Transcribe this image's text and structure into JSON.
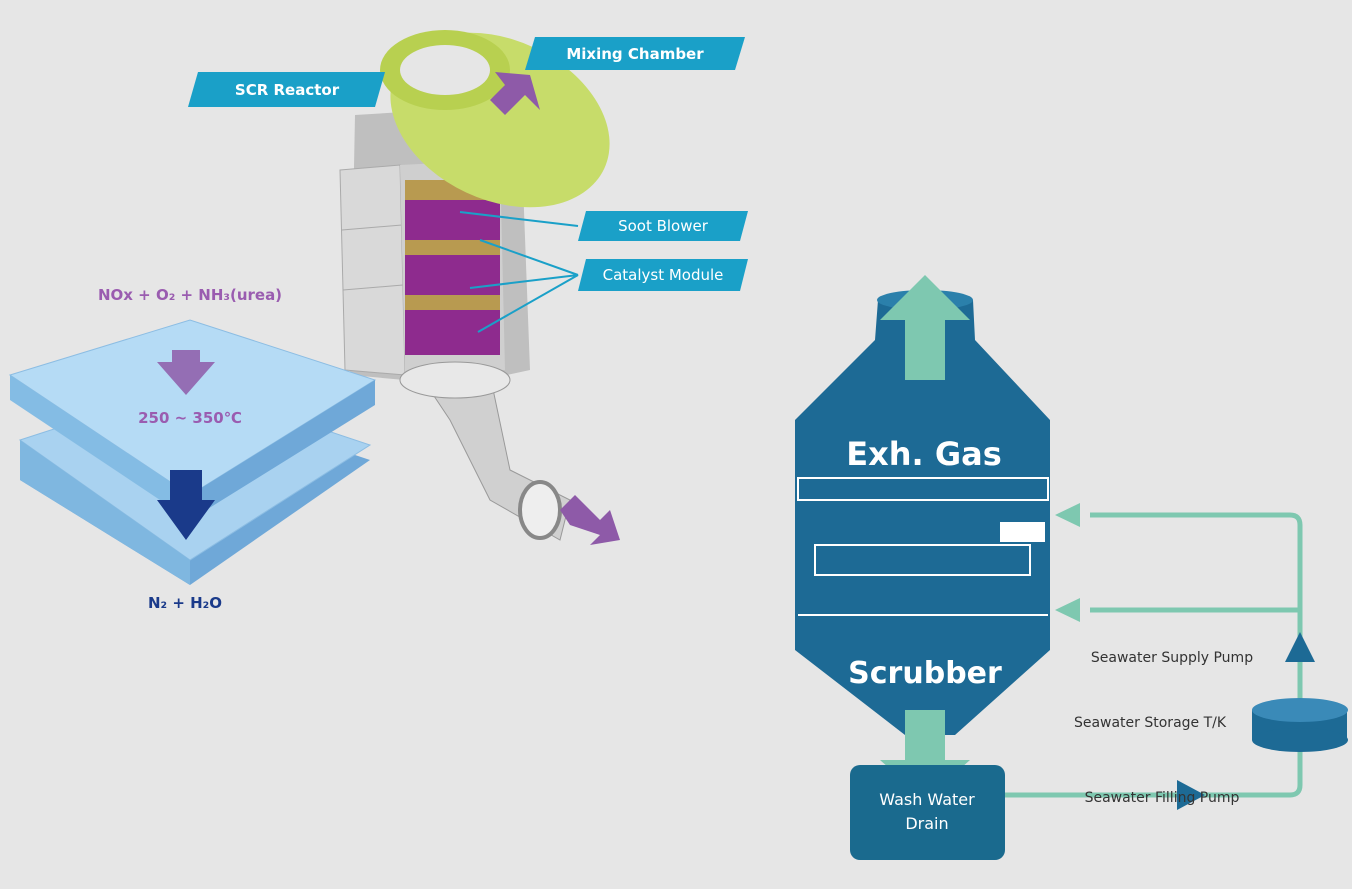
{
  "scr": {
    "labels": {
      "scr_reactor": "SCR Reactor",
      "mixing_chamber": "Mixing Chamber",
      "soot_blower": "Soot Blower",
      "catalyst_module": "Catalyst Module"
    },
    "reaction": {
      "input": "NOx + O₂ + NH₃(urea)",
      "temperature": "250 ~ 350℃",
      "output": "N₂ + H₂O"
    }
  },
  "scrubber": {
    "gas_label": "Exh. Gas",
    "vessel_label": "Scrubber",
    "labels": {
      "supply_pump": "Seawater Supply Pump",
      "storage_tank": "Seawater Storage T/K",
      "filling_pump": "Seawater Filling Pump"
    },
    "drain": [
      "Wash Water",
      "Drain"
    ]
  }
}
